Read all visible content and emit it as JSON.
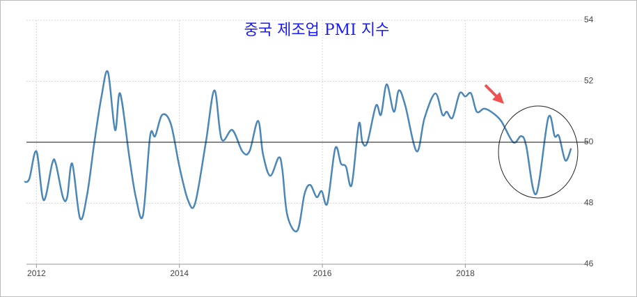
{
  "chart_data": {
    "type": "line",
    "title": "중국 제조업 PMI 지수",
    "x": [
      2011.83,
      2011.9,
      2012.0,
      2012.1,
      2012.22,
      2012.27,
      2012.37,
      2012.43,
      2012.5,
      2012.61,
      2012.71,
      2012.81,
      2012.91,
      2013.0,
      2013.1,
      2013.17,
      2013.3,
      2013.39,
      2013.49,
      2013.59,
      2013.66,
      2013.76,
      2013.88,
      2014.0,
      2014.12,
      2014.22,
      2014.37,
      2014.49,
      2014.59,
      2014.74,
      2014.88,
      2014.98,
      2015.1,
      2015.17,
      2015.27,
      2015.39,
      2015.44,
      2015.51,
      2015.65,
      2015.75,
      2015.83,
      2015.92,
      2015.99,
      2016.07,
      2016.18,
      2016.26,
      2016.33,
      2016.41,
      2016.51,
      2016.56,
      2016.63,
      2016.75,
      2016.82,
      2016.9,
      2017.0,
      2017.07,
      2017.16,
      2017.32,
      2017.43,
      2017.58,
      2017.68,
      2017.74,
      2017.82,
      2017.92,
      2018.0,
      2018.08,
      2018.16,
      2018.26,
      2018.36,
      2018.5,
      2018.67,
      2018.78,
      2018.85,
      2018.99,
      2019.16,
      2019.25,
      2019.31,
      2019.4,
      2019.48
    ],
    "series": [
      {
        "name": "PMI",
        "color": "#4a86b8",
        "values": [
          48.7,
          48.8,
          49.7,
          48.1,
          49.3,
          49.3,
          48.2,
          48.2,
          49.3,
          47.5,
          48.3,
          50.0,
          51.5,
          52.3,
          50.4,
          51.6,
          49.5,
          48.2,
          47.6,
          50.2,
          50.2,
          50.9,
          50.6,
          49.2,
          48.1,
          48.0,
          50.0,
          51.7,
          50.1,
          50.4,
          49.7,
          49.7,
          50.7,
          49.6,
          48.9,
          49.5,
          49.1,
          47.6,
          47.1,
          48.3,
          48.6,
          48.2,
          48.4,
          48.0,
          49.8,
          49.3,
          49.2,
          48.6,
          50.6,
          50.0,
          50.0,
          51.2,
          50.9,
          51.9,
          51.0,
          51.7,
          51.2,
          49.7,
          50.8,
          51.6,
          50.9,
          51.0,
          50.8,
          51.6,
          51.5,
          51.6,
          51.0,
          51.1,
          51.0,
          50.7,
          50.0,
          50.2,
          49.9,
          48.3,
          50.8,
          50.2,
          50.2,
          49.4,
          49.8
        ]
      }
    ],
    "xlim": [
      2011.86,
      2019.72
    ],
    "xticks": [
      2012,
      2014,
      2016,
      2018
    ],
    "ylim": [
      46,
      54
    ],
    "yticks": [
      46,
      48,
      50,
      52,
      54
    ],
    "reference_line": 50,
    "grid": true
  }
}
